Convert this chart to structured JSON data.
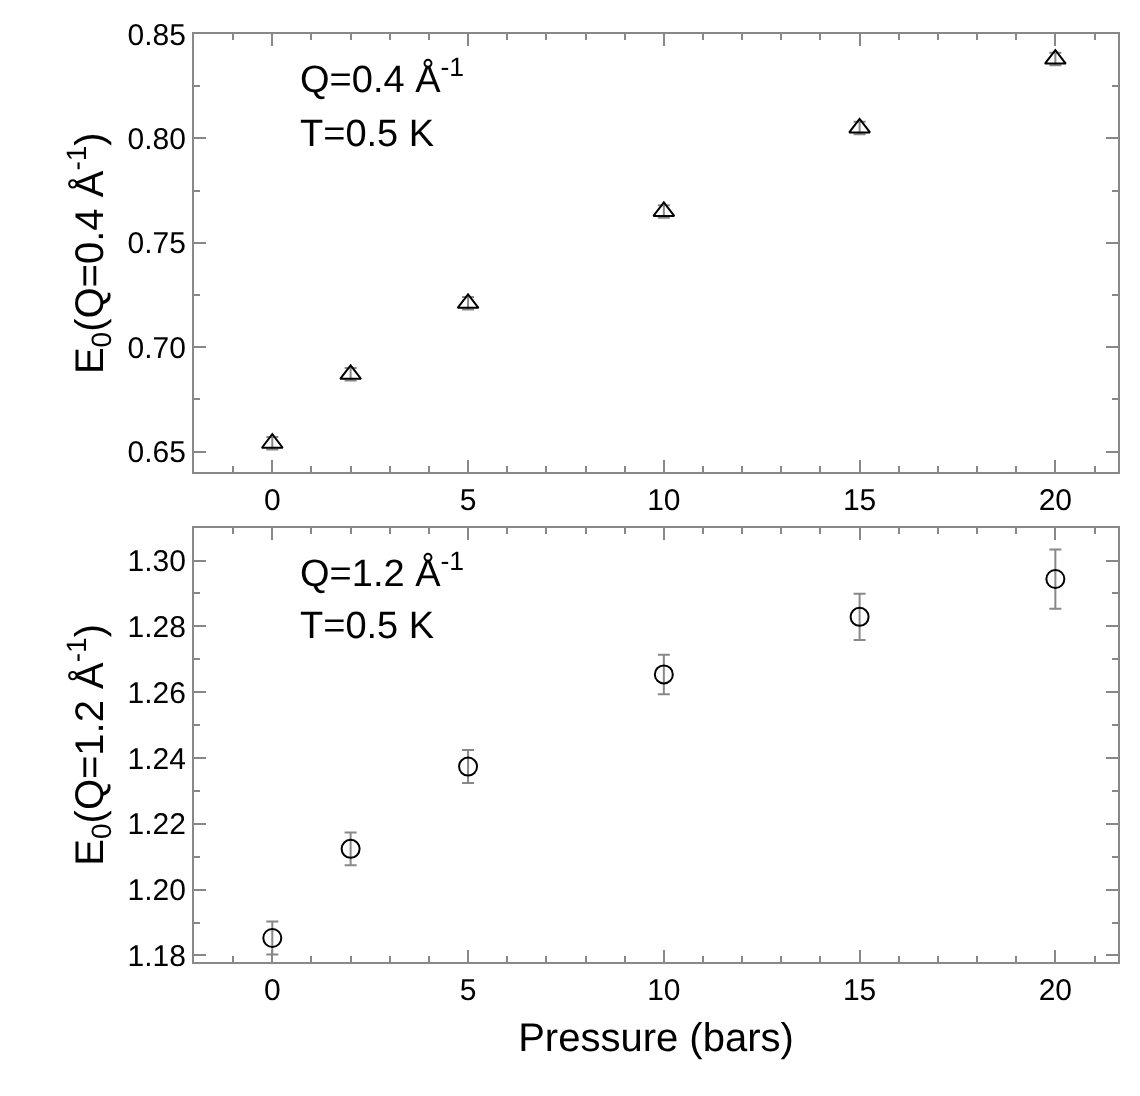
{
  "chart_data": [
    {
      "type": "scatter",
      "x": [
        0,
        2,
        5,
        10,
        15,
        20
      ],
      "ylabel": "E$_{0}$(Q=0.4 Å$^{-1}$)",
      "annotations": [
        "Q=0.4 Å$^{-1}$",
        "T=0.5 K"
      ],
      "marker": "triangle",
      "series": [
        {
          "color": "#000000",
          "values": [
            0.654,
            0.687,
            0.721,
            0.765,
            0.805,
            0.838
          ],
          "errors": [
            0.003,
            0.003,
            0.003,
            0.003,
            0.003,
            0.003
          ]
        }
      ],
      "xlim": [
        -2,
        21.6
      ],
      "xticks": [
        0,
        5,
        10,
        15,
        20
      ],
      "ylim": [
        0.64,
        0.85
      ],
      "yticks": [
        {
          "value": 0.65,
          "label": "0.65"
        },
        {
          "value": 0.7,
          "label": "0.70"
        },
        {
          "value": 0.75,
          "label": "0.75"
        },
        {
          "value": 0.8,
          "label": "0.80"
        },
        {
          "value": 0.85,
          "label": "0.85"
        }
      ]
    },
    {
      "type": "scatter",
      "x": [
        0,
        2,
        5,
        10,
        15,
        20
      ],
      "xlabel": "Pressure (bars)",
      "ylabel": "E$_{0}$(Q=1.2 Å$^{-1}$)",
      "annotations": [
        "Q=1.2 Å$^{-1}$",
        "T=0.5 K"
      ],
      "marker": "circle",
      "series": [
        {
          "color": "#000000",
          "values": [
            1.1853,
            1.2124,
            1.2374,
            1.2654,
            1.2829,
            1.2944
          ],
          "errors": [
            0.005,
            0.005,
            0.005,
            0.006,
            0.007,
            0.009
          ]
        }
      ],
      "xlim": [
        -2,
        21.6
      ],
      "xticks": [
        0,
        5,
        10,
        15,
        20
      ],
      "ylim": [
        1.178,
        1.31
      ],
      "yticks": [
        {
          "value": 1.18,
          "label": "1.18"
        },
        {
          "value": 1.2,
          "label": "1.20"
        },
        {
          "value": 1.22,
          "label": "1.22"
        },
        {
          "value": 1.24,
          "label": "1.24"
        },
        {
          "value": 1.26,
          "label": "1.26"
        },
        {
          "value": 1.28,
          "label": "1.28"
        },
        {
          "value": 1.3,
          "label": "1.30"
        }
      ]
    }
  ]
}
